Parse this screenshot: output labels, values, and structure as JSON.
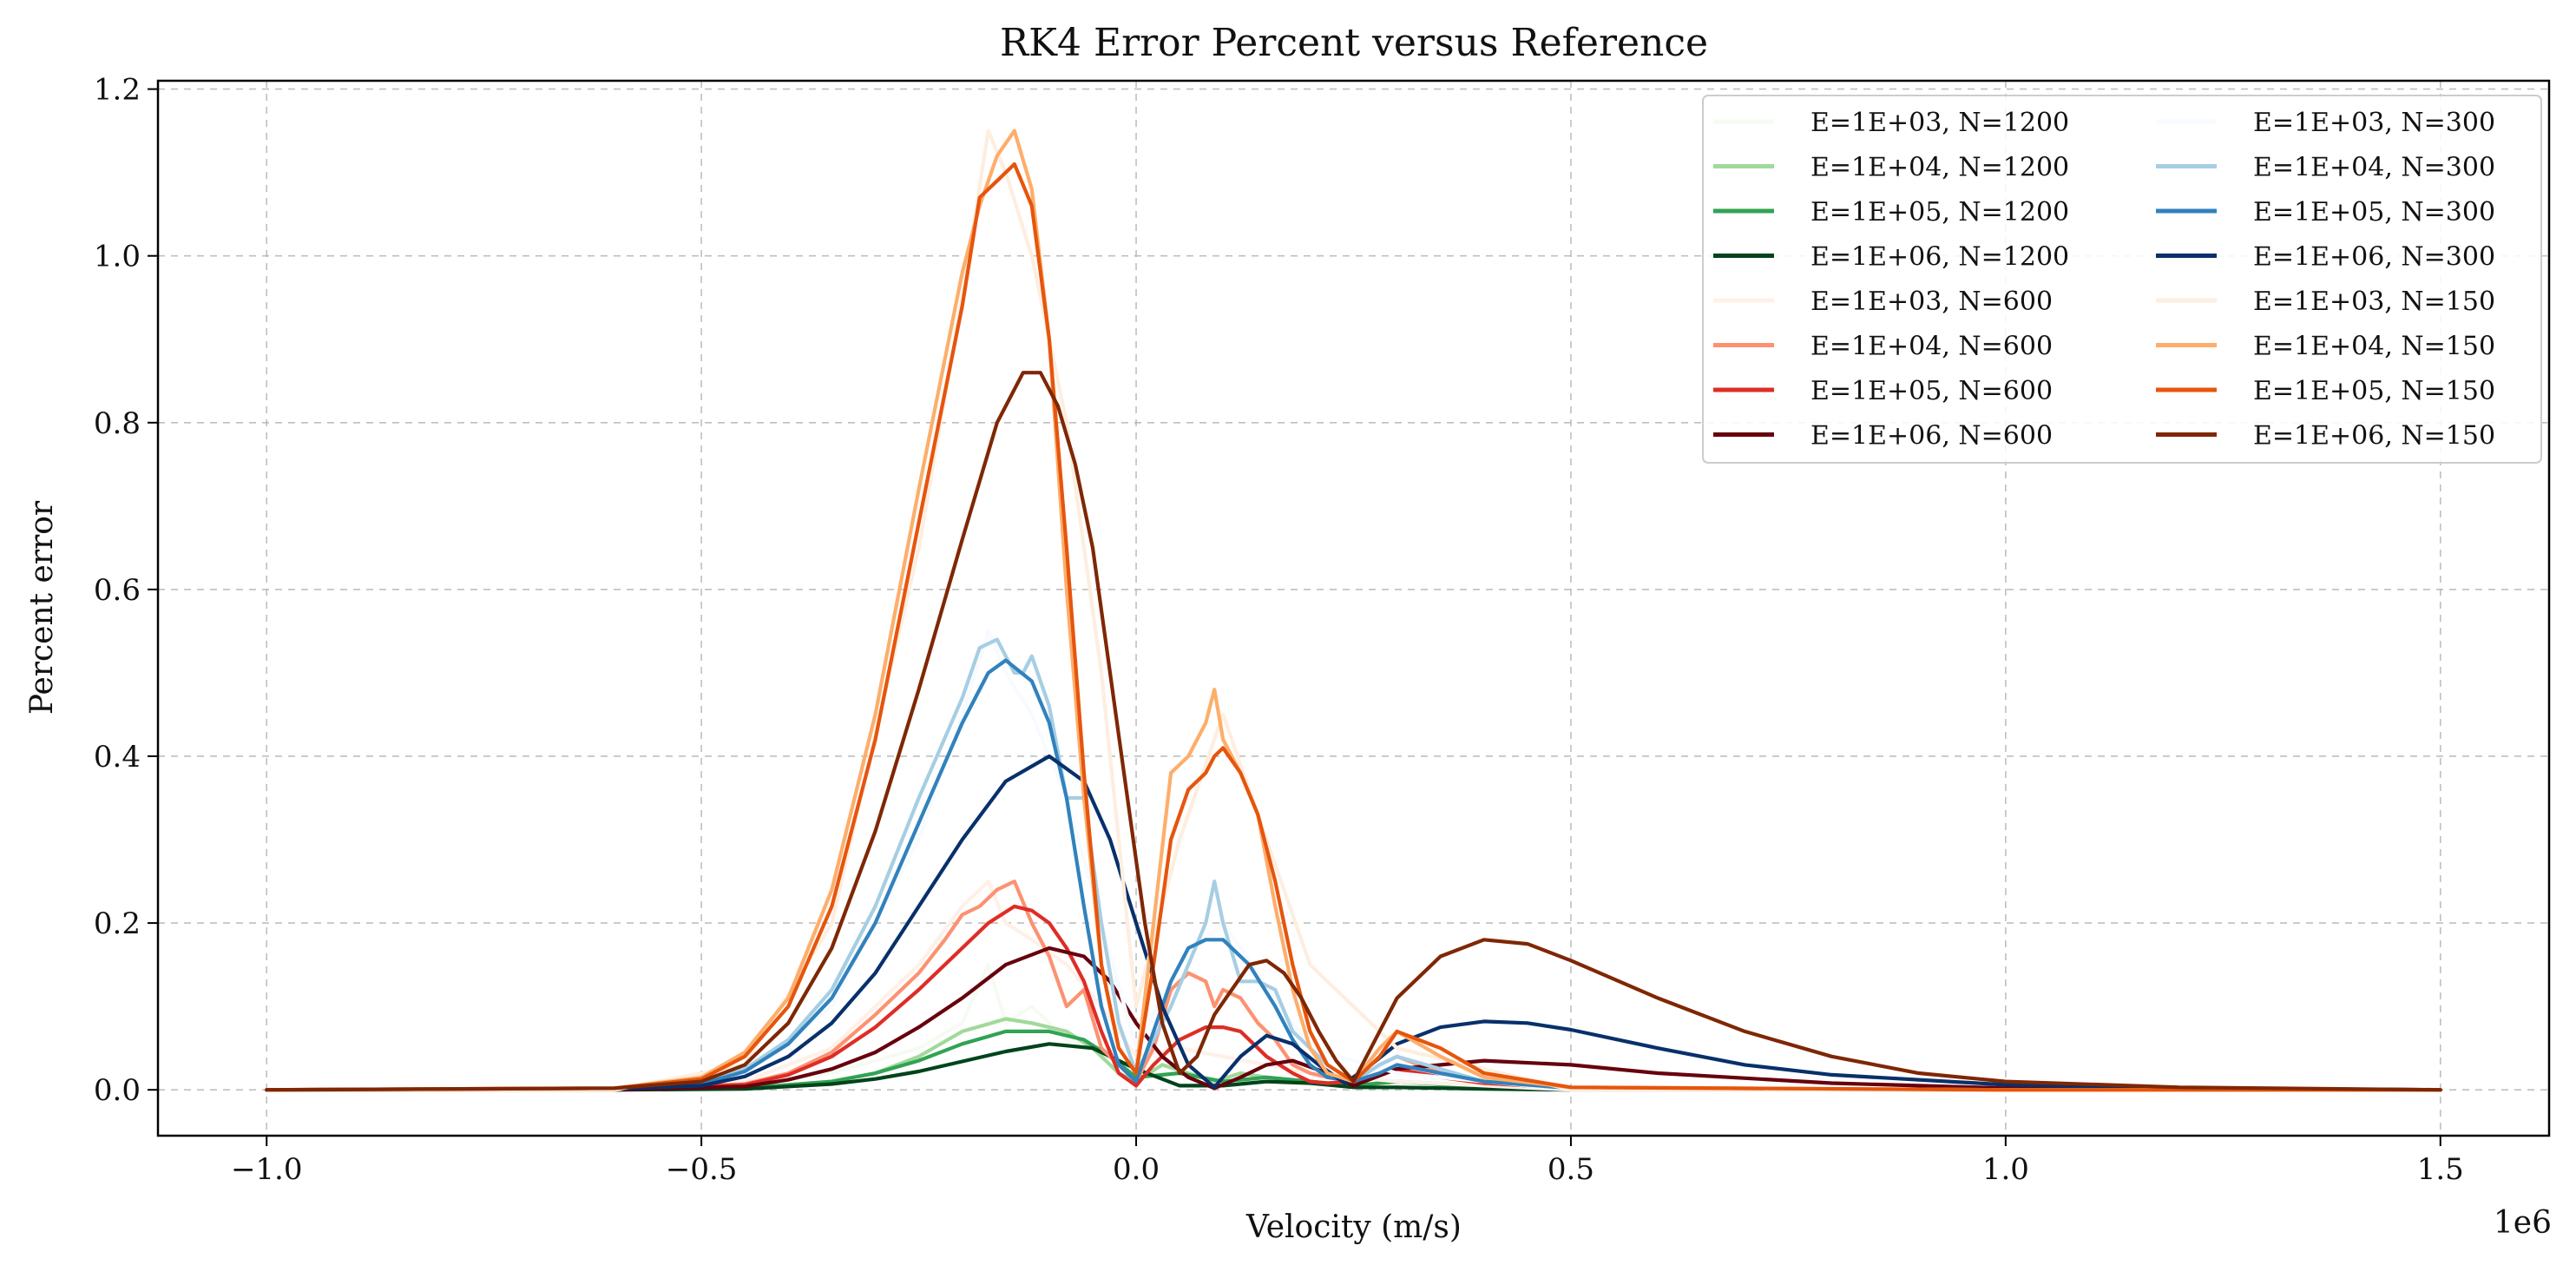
{
  "chart_data": {
    "type": "line",
    "title": "RK4 Error Percent versus Reference",
    "xlabel": "Velocity (m/s)",
    "ylabel": "Percent error",
    "x_offset_label": "1e6",
    "xlim": [
      -1.125,
      1.625
    ],
    "ylim": [
      -0.055,
      1.21
    ],
    "xticks": [
      -1.0,
      -0.5,
      0.0,
      0.5,
      1.0,
      1.5
    ],
    "xtick_labels": [
      "−1.0",
      "−0.5",
      "0.0",
      "0.5",
      "1.0",
      "1.5"
    ],
    "yticks": [
      0.0,
      0.2,
      0.4,
      0.6,
      0.8,
      1.0,
      1.2
    ],
    "ytick_labels": [
      "0.0",
      "0.2",
      "0.4",
      "0.6",
      "0.8",
      "1.0",
      "1.2"
    ],
    "grid": true,
    "legend_position": "top-right",
    "legend_columns": 2,
    "series": [
      {
        "name": "E=1E+03, N=1200",
        "color": "#f5fbf2",
        "x": [
          -1.0,
          -0.6,
          -0.45,
          -0.35,
          -0.25,
          -0.2,
          -0.17,
          -0.15,
          -0.12,
          -0.08,
          -0.04,
          0.0,
          0.05,
          0.1,
          0.2,
          0.3,
          0.5,
          1.0,
          1.5
        ],
        "y": [
          0,
          0,
          0.005,
          0.02,
          0.05,
          0.08,
          0.15,
          0.08,
          0.1,
          0.06,
          0.05,
          0.02,
          0.02,
          0.01,
          0.01,
          0.005,
          0,
          0,
          0
        ]
      },
      {
        "name": "E=1E+04, N=1200",
        "color": "#a1d99b",
        "x": [
          -1.0,
          -0.6,
          -0.45,
          -0.35,
          -0.3,
          -0.25,
          -0.2,
          -0.15,
          -0.12,
          -0.1,
          -0.08,
          -0.05,
          -0.02,
          0.0,
          0.03,
          0.06,
          0.09,
          0.12,
          0.15,
          0.2,
          0.25,
          0.3,
          0.4,
          0.5,
          1.0,
          1.5
        ],
        "y": [
          0,
          0,
          0.002,
          0.01,
          0.02,
          0.04,
          0.07,
          0.085,
          0.08,
          0.075,
          0.07,
          0.05,
          0.02,
          0.01,
          0.03,
          0.02,
          0.01,
          0.02,
          0.015,
          0.01,
          0.005,
          0.01,
          0.005,
          0,
          0,
          0
        ]
      },
      {
        "name": "E=1E+05, N=1200",
        "color": "#31a354",
        "x": [
          -1.0,
          -0.6,
          -0.45,
          -0.35,
          -0.3,
          -0.25,
          -0.2,
          -0.15,
          -0.1,
          -0.06,
          -0.03,
          0.0,
          0.05,
          0.1,
          0.15,
          0.2,
          0.25,
          0.3,
          0.4,
          0.5,
          1.0,
          1.5
        ],
        "y": [
          0,
          0,
          0.002,
          0.01,
          0.02,
          0.035,
          0.055,
          0.07,
          0.07,
          0.06,
          0.04,
          0.015,
          0.02,
          0.01,
          0.015,
          0.01,
          0.005,
          0.01,
          0.003,
          0,
          0,
          0
        ]
      },
      {
        "name": "E=1E+06, N=1200",
        "color": "#00441b",
        "x": [
          -1.0,
          -0.6,
          -0.45,
          -0.35,
          -0.3,
          -0.25,
          -0.2,
          -0.15,
          -0.1,
          -0.05,
          0.0,
          0.05,
          0.1,
          0.15,
          0.2,
          0.25,
          0.3,
          0.4,
          0.5,
          1.0,
          1.5
        ],
        "y": [
          0,
          0,
          0.001,
          0.007,
          0.013,
          0.022,
          0.034,
          0.046,
          0.055,
          0.05,
          0.025,
          0.005,
          0.005,
          0.01,
          0.008,
          0.003,
          0.003,
          0.001,
          0,
          0,
          0
        ]
      },
      {
        "name": "E=1E+03, N=600",
        "color": "#fff0e8",
        "x": [
          -1.0,
          -0.6,
          -0.45,
          -0.35,
          -0.25,
          -0.2,
          -0.17,
          -0.15,
          -0.12,
          -0.08,
          -0.04,
          0.0,
          0.05,
          0.1,
          0.2,
          0.3,
          0.5,
          1.0,
          1.5
        ],
        "y": [
          0,
          0,
          0.01,
          0.05,
          0.15,
          0.22,
          0.25,
          0.2,
          0.18,
          0.15,
          0.1,
          0.04,
          0.05,
          0.04,
          0.02,
          0.01,
          0,
          0,
          0
        ]
      },
      {
        "name": "E=1E+04, N=600",
        "color": "#fc9272",
        "x": [
          -1.0,
          -0.6,
          -0.45,
          -0.4,
          -0.35,
          -0.3,
          -0.25,
          -0.22,
          -0.2,
          -0.18,
          -0.16,
          -0.14,
          -0.12,
          -0.1,
          -0.08,
          -0.06,
          -0.04,
          -0.02,
          0.0,
          0.02,
          0.04,
          0.06,
          0.08,
          0.09,
          0.1,
          0.12,
          0.14,
          0.16,
          0.18,
          0.2,
          0.22,
          0.25,
          0.28,
          0.3,
          0.35,
          0.4,
          0.5,
          1.0,
          1.5
        ],
        "y": [
          0,
          0,
          0.007,
          0.02,
          0.045,
          0.09,
          0.14,
          0.18,
          0.21,
          0.22,
          0.24,
          0.25,
          0.2,
          0.16,
          0.1,
          0.12,
          0.05,
          0.03,
          0.01,
          0.05,
          0.12,
          0.14,
          0.13,
          0.1,
          0.12,
          0.11,
          0.08,
          0.06,
          0.03,
          0.02,
          0.015,
          0.01,
          0.03,
          0.04,
          0.02,
          0.01,
          0.002,
          0,
          0
        ]
      },
      {
        "name": "E=1E+05, N=600",
        "color": "#de2d26",
        "x": [
          -1.0,
          -0.6,
          -0.45,
          -0.4,
          -0.35,
          -0.3,
          -0.25,
          -0.2,
          -0.17,
          -0.14,
          -0.12,
          -0.1,
          -0.08,
          -0.06,
          -0.04,
          -0.02,
          0.0,
          0.02,
          0.05,
          0.08,
          0.1,
          0.12,
          0.15,
          0.18,
          0.2,
          0.22,
          0.25,
          0.28,
          0.3,
          0.35,
          0.4,
          0.5,
          1.0,
          1.5
        ],
        "y": [
          0,
          0,
          0.006,
          0.018,
          0.04,
          0.075,
          0.12,
          0.17,
          0.2,
          0.22,
          0.215,
          0.2,
          0.17,
          0.13,
          0.07,
          0.02,
          0.005,
          0.03,
          0.06,
          0.075,
          0.075,
          0.07,
          0.04,
          0.02,
          0.01,
          0.008,
          0.01,
          0.02,
          0.025,
          0.015,
          0.008,
          0.002,
          0,
          0
        ]
      },
      {
        "name": "E=1E+06, N=600",
        "color": "#67000d",
        "x": [
          -1.0,
          -0.6,
          -0.45,
          -0.4,
          -0.35,
          -0.3,
          -0.25,
          -0.2,
          -0.15,
          -0.1,
          -0.06,
          -0.03,
          0.0,
          0.03,
          0.06,
          0.09,
          0.12,
          0.15,
          0.18,
          0.22,
          0.25,
          0.3,
          0.4,
          0.5,
          0.6,
          0.8,
          1.0,
          1.5
        ],
        "y": [
          0,
          0,
          0.004,
          0.012,
          0.025,
          0.045,
          0.075,
          0.11,
          0.15,
          0.17,
          0.16,
          0.13,
          0.08,
          0.04,
          0.015,
          0.002,
          0.015,
          0.03,
          0.035,
          0.02,
          0.005,
          0.025,
          0.035,
          0.03,
          0.02,
          0.008,
          0.002,
          0
        ]
      },
      {
        "name": "E=1E+03, N=300",
        "color": "#f7fbff",
        "x": [
          -1.0,
          -0.6,
          -0.45,
          -0.35,
          -0.25,
          -0.2,
          -0.17,
          -0.15,
          -0.12,
          -0.08,
          -0.04,
          0.0,
          0.05,
          0.1,
          0.2,
          0.3,
          0.5,
          1.0,
          1.5
        ],
        "y": [
          0,
          0,
          0.02,
          0.1,
          0.3,
          0.45,
          0.55,
          0.5,
          0.45,
          0.35,
          0.2,
          0.05,
          0.15,
          0.2,
          0.05,
          0.02,
          0,
          0,
          0
        ]
      },
      {
        "name": "E=1E+04, N=300",
        "color": "#a6cee3",
        "x": [
          -1.0,
          -0.6,
          -0.5,
          -0.45,
          -0.4,
          -0.35,
          -0.3,
          -0.25,
          -0.2,
          -0.18,
          -0.16,
          -0.14,
          -0.13,
          -0.12,
          -0.1,
          -0.08,
          -0.06,
          -0.04,
          -0.02,
          0.0,
          0.02,
          0.04,
          0.06,
          0.08,
          0.09,
          0.1,
          0.12,
          0.14,
          0.16,
          0.18,
          0.2,
          0.22,
          0.25,
          0.28,
          0.3,
          0.35,
          0.4,
          0.5,
          1.0,
          1.5
        ],
        "y": [
          0,
          0.001,
          0.008,
          0.025,
          0.06,
          0.12,
          0.22,
          0.35,
          0.47,
          0.53,
          0.54,
          0.5,
          0.5,
          0.52,
          0.46,
          0.35,
          0.35,
          0.2,
          0.08,
          0.02,
          0.06,
          0.1,
          0.15,
          0.2,
          0.25,
          0.2,
          0.13,
          0.13,
          0.12,
          0.07,
          0.05,
          0.03,
          0.01,
          0.03,
          0.04,
          0.025,
          0.01,
          0.002,
          0,
          0
        ]
      },
      {
        "name": "E=1E+05, N=300",
        "color": "#3182bd",
        "x": [
          -1.0,
          -0.6,
          -0.5,
          -0.45,
          -0.4,
          -0.35,
          -0.3,
          -0.25,
          -0.2,
          -0.17,
          -0.15,
          -0.12,
          -0.1,
          -0.08,
          -0.06,
          -0.04,
          -0.02,
          0.0,
          0.02,
          0.04,
          0.06,
          0.08,
          0.1,
          0.13,
          0.16,
          0.18,
          0.2,
          0.22,
          0.25,
          0.28,
          0.3,
          0.35,
          0.4,
          0.5,
          1.0,
          1.5
        ],
        "y": [
          0,
          0.001,
          0.007,
          0.022,
          0.055,
          0.11,
          0.2,
          0.32,
          0.44,
          0.5,
          0.515,
          0.49,
          0.44,
          0.35,
          0.22,
          0.1,
          0.03,
          0.01,
          0.07,
          0.13,
          0.17,
          0.18,
          0.18,
          0.15,
          0.1,
          0.06,
          0.03,
          0.015,
          0.01,
          0.02,
          0.03,
          0.02,
          0.01,
          0.002,
          0,
          0
        ]
      },
      {
        "name": "E=1E+06, N=300",
        "color": "#08306b",
        "x": [
          -1.0,
          -0.6,
          -0.5,
          -0.45,
          -0.4,
          -0.35,
          -0.3,
          -0.25,
          -0.2,
          -0.15,
          -0.1,
          -0.06,
          -0.03,
          0.0,
          0.03,
          0.06,
          0.09,
          0.12,
          0.15,
          0.18,
          0.21,
          0.24,
          0.27,
          0.3,
          0.35,
          0.4,
          0.45,
          0.5,
          0.6,
          0.7,
          0.8,
          1.0,
          1.2,
          1.5
        ],
        "y": [
          0,
          0.001,
          0.005,
          0.016,
          0.04,
          0.08,
          0.14,
          0.22,
          0.3,
          0.37,
          0.4,
          0.37,
          0.3,
          0.2,
          0.1,
          0.03,
          0.003,
          0.04,
          0.065,
          0.055,
          0.03,
          0.008,
          0.03,
          0.055,
          0.075,
          0.082,
          0.08,
          0.072,
          0.05,
          0.03,
          0.018,
          0.006,
          0.002,
          0
        ]
      },
      {
        "name": "E=1E+03, N=150",
        "color": "#fdeee0",
        "x": [
          -1.0,
          -0.6,
          -0.45,
          -0.35,
          -0.25,
          -0.2,
          -0.17,
          -0.15,
          -0.12,
          -0.08,
          -0.04,
          0.0,
          0.05,
          0.1,
          0.2,
          0.3,
          0.5,
          1.0,
          1.5
        ],
        "y": [
          0,
          0,
          0.03,
          0.2,
          0.65,
          0.95,
          1.15,
          1.1,
          1.0,
          0.8,
          0.5,
          0.1,
          0.3,
          0.45,
          0.15,
          0.05,
          0,
          0,
          0
        ]
      },
      {
        "name": "E=1E+04, N=150",
        "color": "#fdae6b",
        "x": [
          -1.0,
          -0.6,
          -0.5,
          -0.45,
          -0.4,
          -0.35,
          -0.3,
          -0.25,
          -0.2,
          -0.18,
          -0.16,
          -0.14,
          -0.12,
          -0.1,
          -0.08,
          -0.06,
          -0.04,
          -0.02,
          0.0,
          0.02,
          0.04,
          0.06,
          0.08,
          0.09,
          0.1,
          0.12,
          0.14,
          0.16,
          0.18,
          0.2,
          0.22,
          0.25,
          0.28,
          0.3,
          0.35,
          0.4,
          0.5,
          1.0,
          1.5
        ],
        "y": [
          0,
          0.002,
          0.015,
          0.045,
          0.11,
          0.24,
          0.45,
          0.72,
          0.98,
          1.06,
          1.12,
          1.15,
          1.08,
          0.9,
          0.6,
          0.35,
          0.15,
          0.05,
          0.02,
          0.2,
          0.38,
          0.4,
          0.44,
          0.48,
          0.42,
          0.38,
          0.33,
          0.22,
          0.12,
          0.05,
          0.02,
          0.01,
          0.05,
          0.07,
          0.04,
          0.015,
          0.003,
          0,
          0
        ]
      },
      {
        "name": "E=1E+05, N=150",
        "color": "#e6550d",
        "x": [
          -1.0,
          -0.6,
          -0.5,
          -0.45,
          -0.4,
          -0.35,
          -0.3,
          -0.25,
          -0.2,
          -0.18,
          -0.16,
          -0.14,
          -0.12,
          -0.1,
          -0.08,
          -0.06,
          -0.04,
          -0.02,
          0.0,
          0.02,
          0.04,
          0.06,
          0.08,
          0.09,
          0.1,
          0.12,
          0.14,
          0.16,
          0.18,
          0.2,
          0.22,
          0.25,
          0.28,
          0.3,
          0.35,
          0.4,
          0.5,
          1.0,
          1.5
        ],
        "y": [
          0,
          0.002,
          0.013,
          0.04,
          0.1,
          0.22,
          0.42,
          0.68,
          0.94,
          1.07,
          1.09,
          1.11,
          1.06,
          0.9,
          0.65,
          0.38,
          0.15,
          0.05,
          0.02,
          0.15,
          0.3,
          0.36,
          0.38,
          0.4,
          0.41,
          0.38,
          0.33,
          0.25,
          0.15,
          0.07,
          0.03,
          0.01,
          0.04,
          0.07,
          0.05,
          0.02,
          0.003,
          0,
          0
        ]
      },
      {
        "name": "E=1E+06, N=150",
        "color": "#7f2704",
        "x": [
          -1.0,
          -0.6,
          -0.5,
          -0.45,
          -0.4,
          -0.35,
          -0.3,
          -0.25,
          -0.2,
          -0.16,
          -0.13,
          -0.11,
          -0.09,
          -0.07,
          -0.05,
          -0.03,
          -0.01,
          0.01,
          0.03,
          0.05,
          0.07,
          0.09,
          0.11,
          0.13,
          0.15,
          0.17,
          0.19,
          0.21,
          0.23,
          0.25,
          0.27,
          0.3,
          0.35,
          0.4,
          0.45,
          0.5,
          0.6,
          0.7,
          0.8,
          0.9,
          1.0,
          1.2,
          1.5
        ],
        "y": [
          0,
          0.002,
          0.01,
          0.03,
          0.08,
          0.17,
          0.31,
          0.48,
          0.66,
          0.8,
          0.86,
          0.86,
          0.82,
          0.75,
          0.65,
          0.5,
          0.35,
          0.2,
          0.08,
          0.02,
          0.04,
          0.09,
          0.12,
          0.15,
          0.155,
          0.14,
          0.11,
          0.07,
          0.035,
          0.01,
          0.05,
          0.11,
          0.16,
          0.18,
          0.175,
          0.155,
          0.11,
          0.07,
          0.04,
          0.02,
          0.01,
          0.003,
          0
        ]
      }
    ]
  }
}
